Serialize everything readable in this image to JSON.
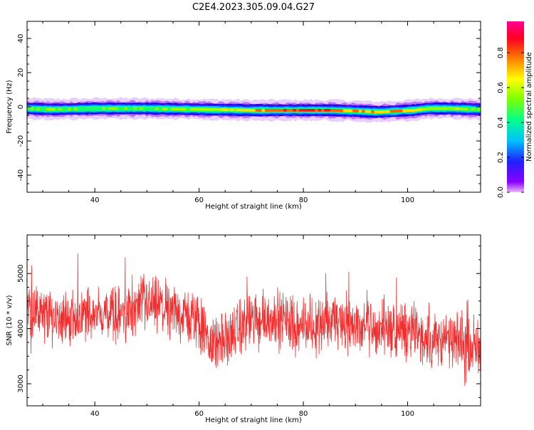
{
  "figure_title": "C2E4.2023.305.09.04.G27",
  "colorbar": {
    "label": "Normalized spectral amplitude",
    "ticks": [
      "0.0",
      "0.2",
      "0.4",
      "0.6",
      "0.8"
    ],
    "tick_values": [
      0.0,
      0.2,
      0.4,
      0.6,
      0.8
    ],
    "range": [
      0,
      0.98
    ]
  },
  "chart_data": [
    {
      "type": "heatmap",
      "xlabel": "Height of straight line (km)",
      "ylabel": "Frequency (Hz)",
      "xlim": [
        27,
        114
      ],
      "ylim": [
        -50,
        50
      ],
      "xticks": [
        40,
        60,
        80,
        100
      ],
      "yticks": [
        -40,
        -20,
        0,
        20,
        40
      ],
      "colormap": "gist_rainbow_r",
      "ridge": {
        "x": [
          27,
          32,
          40,
          50,
          60,
          70,
          80,
          85,
          90,
          94,
          98,
          101,
          104,
          108,
          114
        ],
        "center_hz": [
          -1,
          -1.5,
          -1,
          -1,
          -1.5,
          -2,
          -2,
          -2,
          -2.5,
          -3,
          -2.5,
          -2,
          -1,
          -1,
          -1.5
        ],
        "peak_amplitude": [
          0.55,
          0.5,
          0.45,
          0.5,
          0.55,
          0.7,
          0.95,
          0.85,
          0.75,
          0.7,
          0.8,
          0.7,
          0.55,
          0.6,
          0.5
        ]
      }
    },
    {
      "type": "line",
      "xlabel": "Height of straight line (km)",
      "ylabel": "SNR (10 * v/v)",
      "xlim": [
        27,
        114
      ],
      "ylim": [
        2600,
        5700
      ],
      "xticks": [
        40,
        60,
        80,
        100
      ],
      "yticks": [
        3000,
        4000,
        5000
      ],
      "color": "#f03030",
      "x": [
        27,
        30,
        35,
        40,
        45,
        50,
        55,
        60,
        62,
        65,
        70,
        75,
        80,
        85,
        90,
        95,
        100,
        105,
        110,
        114
      ],
      "y": [
        4350,
        4250,
        4200,
        4300,
        4250,
        4450,
        4300,
        4150,
        3700,
        3800,
        4150,
        4200,
        4050,
        4150,
        4050,
        4000,
        3950,
        3800,
        3750,
        3700
      ]
    }
  ]
}
